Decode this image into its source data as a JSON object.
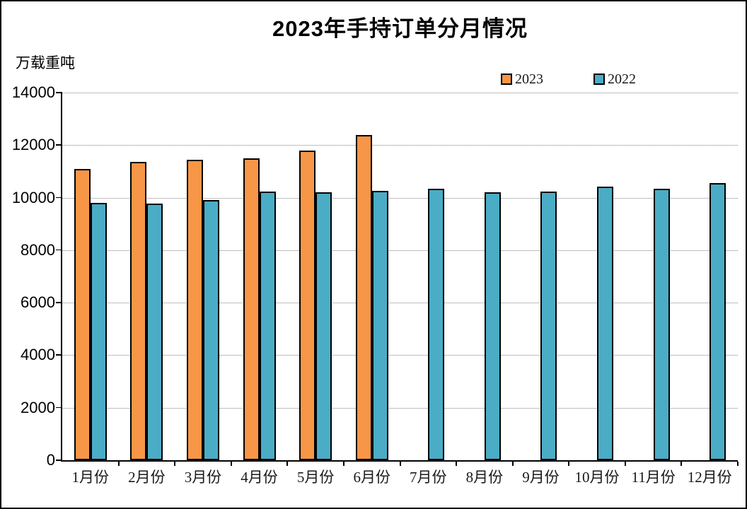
{
  "chart_data": {
    "type": "bar",
    "title": "2023年手持订单分月情况",
    "unit_label": "万载重吨",
    "ylabel": "万载重吨",
    "xlabel": "",
    "categories": [
      "1月份",
      "2月份",
      "3月份",
      "4月份",
      "5月份",
      "6月份",
      "7月份",
      "8月份",
      "9月份",
      "10月份",
      "11月份",
      "12月份"
    ],
    "series": [
      {
        "name": "2023",
        "color": "#F79646",
        "values": [
          11100,
          11350,
          11450,
          11490,
          11780,
          12380,
          null,
          null,
          null,
          null,
          null,
          null
        ]
      },
      {
        "name": "2022",
        "color": "#4BACC6",
        "values": [
          9800,
          9780,
          9900,
          10230,
          10210,
          10270,
          10350,
          10210,
          10230,
          10430,
          10340,
          10550
        ]
      }
    ],
    "ylim": [
      0,
      14000
    ],
    "ytick_step": 2000,
    "ytick_labels": [
      "0",
      "2000",
      "4000",
      "6000",
      "8000",
      "10000",
      "12000",
      "14000"
    ],
    "grid": true,
    "legend_position": "top-inside-right",
    "colors": {
      "axis": "#000000",
      "gridline": "#7f7f7f",
      "background": "#ffffff",
      "bar_border": "#000000"
    }
  }
}
